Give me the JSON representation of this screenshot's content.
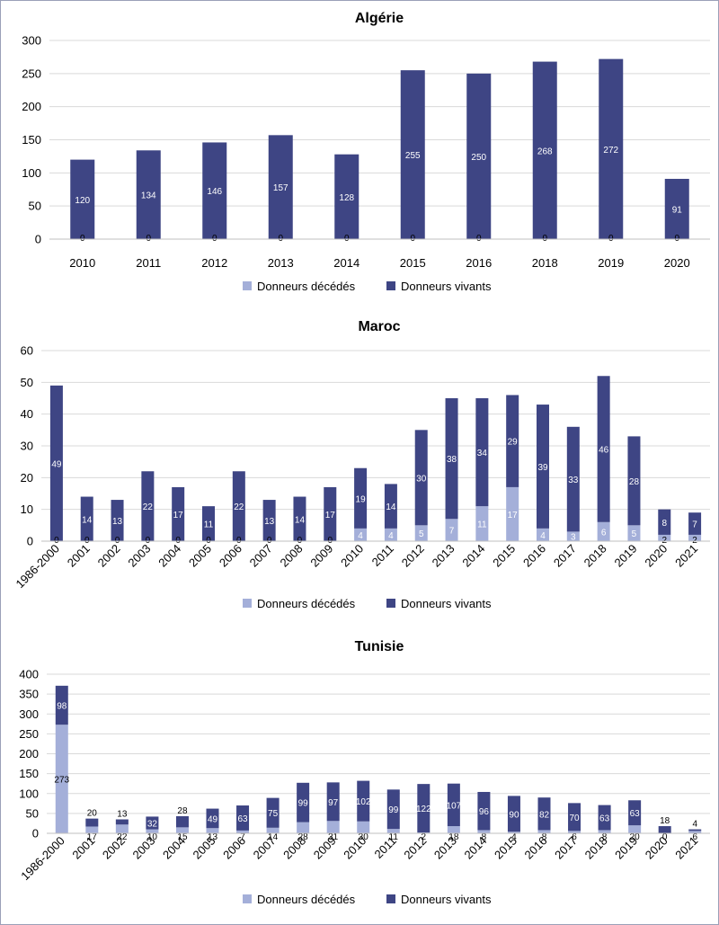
{
  "colors": {
    "deceased": "#a4afd9",
    "living": "#3e4584",
    "grid": "#d9d9d9",
    "axis": "#bfbfbf"
  },
  "chart_data": [
    {
      "type": "bar",
      "stacked": true,
      "title": "Algérie",
      "categories": [
        "2010",
        "2011",
        "2012",
        "2013",
        "2014",
        "2015",
        "2016",
        "2018",
        "2019",
        "2020"
      ],
      "series": [
        {
          "name": "Donneurs décédés",
          "values": [
            0,
            0,
            0,
            0,
            0,
            0,
            0,
            0,
            0,
            0
          ]
        },
        {
          "name": "Donneurs vivants",
          "values": [
            120,
            134,
            146,
            157,
            128,
            255,
            250,
            268,
            272,
            91
          ]
        }
      ],
      "ylim": [
        0,
        300
      ],
      "yticks": [
        0,
        50,
        100,
        150,
        200,
        250,
        300
      ],
      "grid": true,
      "legend": "bottom"
    },
    {
      "type": "bar",
      "stacked": true,
      "title": "Maroc",
      "categories": [
        "1986-2000",
        "2001",
        "2002",
        "2003",
        "2004",
        "2005",
        "2006",
        "2007",
        "2008",
        "2009",
        "2010",
        "2011",
        "2012",
        "2013",
        "2014",
        "2015",
        "2016",
        "2017",
        "2018",
        "2019",
        "2020",
        "2021"
      ],
      "series": [
        {
          "name": "Donneurs décédés",
          "values": [
            0,
            0,
            0,
            0,
            0,
            0,
            0,
            0,
            0,
            0,
            4,
            4,
            5,
            7,
            11,
            17,
            4,
            3,
            6,
            5,
            2,
            2
          ]
        },
        {
          "name": "Donneurs vivants",
          "values": [
            49,
            14,
            13,
            22,
            17,
            11,
            22,
            13,
            14,
            17,
            19,
            14,
            30,
            38,
            34,
            29,
            39,
            33,
            46,
            28,
            8,
            7
          ]
        }
      ],
      "ylim": [
        0,
        60
      ],
      "yticks": [
        0,
        10,
        20,
        30,
        40,
        50,
        60
      ],
      "grid": true,
      "legend": "bottom"
    },
    {
      "type": "bar",
      "stacked": true,
      "title": "Tunisie",
      "categories": [
        "1986-2000",
        "2001",
        "2002",
        "2003",
        "2004",
        "2005",
        "2006",
        "2007",
        "2008",
        "2009",
        "2010",
        "2011",
        "2012",
        "2013",
        "2014",
        "2015",
        "2016",
        "2017",
        "2018",
        "2019",
        "2020",
        "2021"
      ],
      "series": [
        {
          "name": "Donneurs décédés",
          "values": [
            273,
            17,
            22,
            10,
            15,
            13,
            7,
            14,
            28,
            31,
            30,
            11,
            2,
            18,
            8,
            4,
            8,
            6,
            8,
            20,
            0,
            6
          ]
        },
        {
          "name": "Donneurs vivants",
          "values": [
            98,
            20,
            13,
            32,
            28,
            49,
            63,
            75,
            99,
            97,
            102,
            99,
            122,
            107,
            96,
            90,
            82,
            70,
            63,
            63,
            18,
            4
          ]
        }
      ],
      "ylim": [
        0,
        400
      ],
      "yticks": [
        0,
        50,
        100,
        150,
        200,
        250,
        300,
        350,
        400
      ],
      "grid": true,
      "legend": "bottom"
    }
  ]
}
